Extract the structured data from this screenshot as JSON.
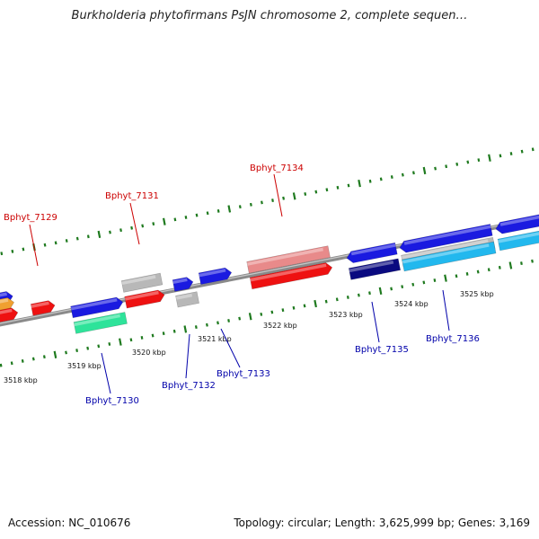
{
  "title": "Burkholderia phytofirmans PsJN chromosome 2, complete sequen…",
  "footer": {
    "accession": "Accession: NC_010676",
    "stats": "Topology: circular; Length: 3,625,999 bp; Genes: 3,169"
  },
  "colors": {
    "backbone": "#8a8a8a",
    "tick": "#1f7a1f",
    "label_top": "#cc0000",
    "label_bottom": "#0000aa",
    "gene_red": "#ee1111",
    "gene_pink": "#e88a8a",
    "gene_grey": "#b8b8b8",
    "gene_blue": "#1a1ae0",
    "gene_navy": "#0a0a80",
    "gene_cyan": "#22b8ee",
    "gene_green": "#2ee39a",
    "gene_orange": "#f0a030"
  },
  "kbp_labels": [
    "3518 kbp",
    "3519 kbp",
    "3520 kbp",
    "3521 kbp",
    "3522 kbp",
    "3523 kbp",
    "3524 kbp",
    "3525 kbp"
  ],
  "gene_labels": {
    "top": [
      "Bphyt_7129",
      "Bphyt_7131",
      "Bphyt_7134"
    ],
    "bottom": [
      "Bphyt_7130",
      "Bphyt_7132",
      "Bphyt_7133",
      "Bphyt_7135",
      "Bphyt_7136"
    ]
  }
}
